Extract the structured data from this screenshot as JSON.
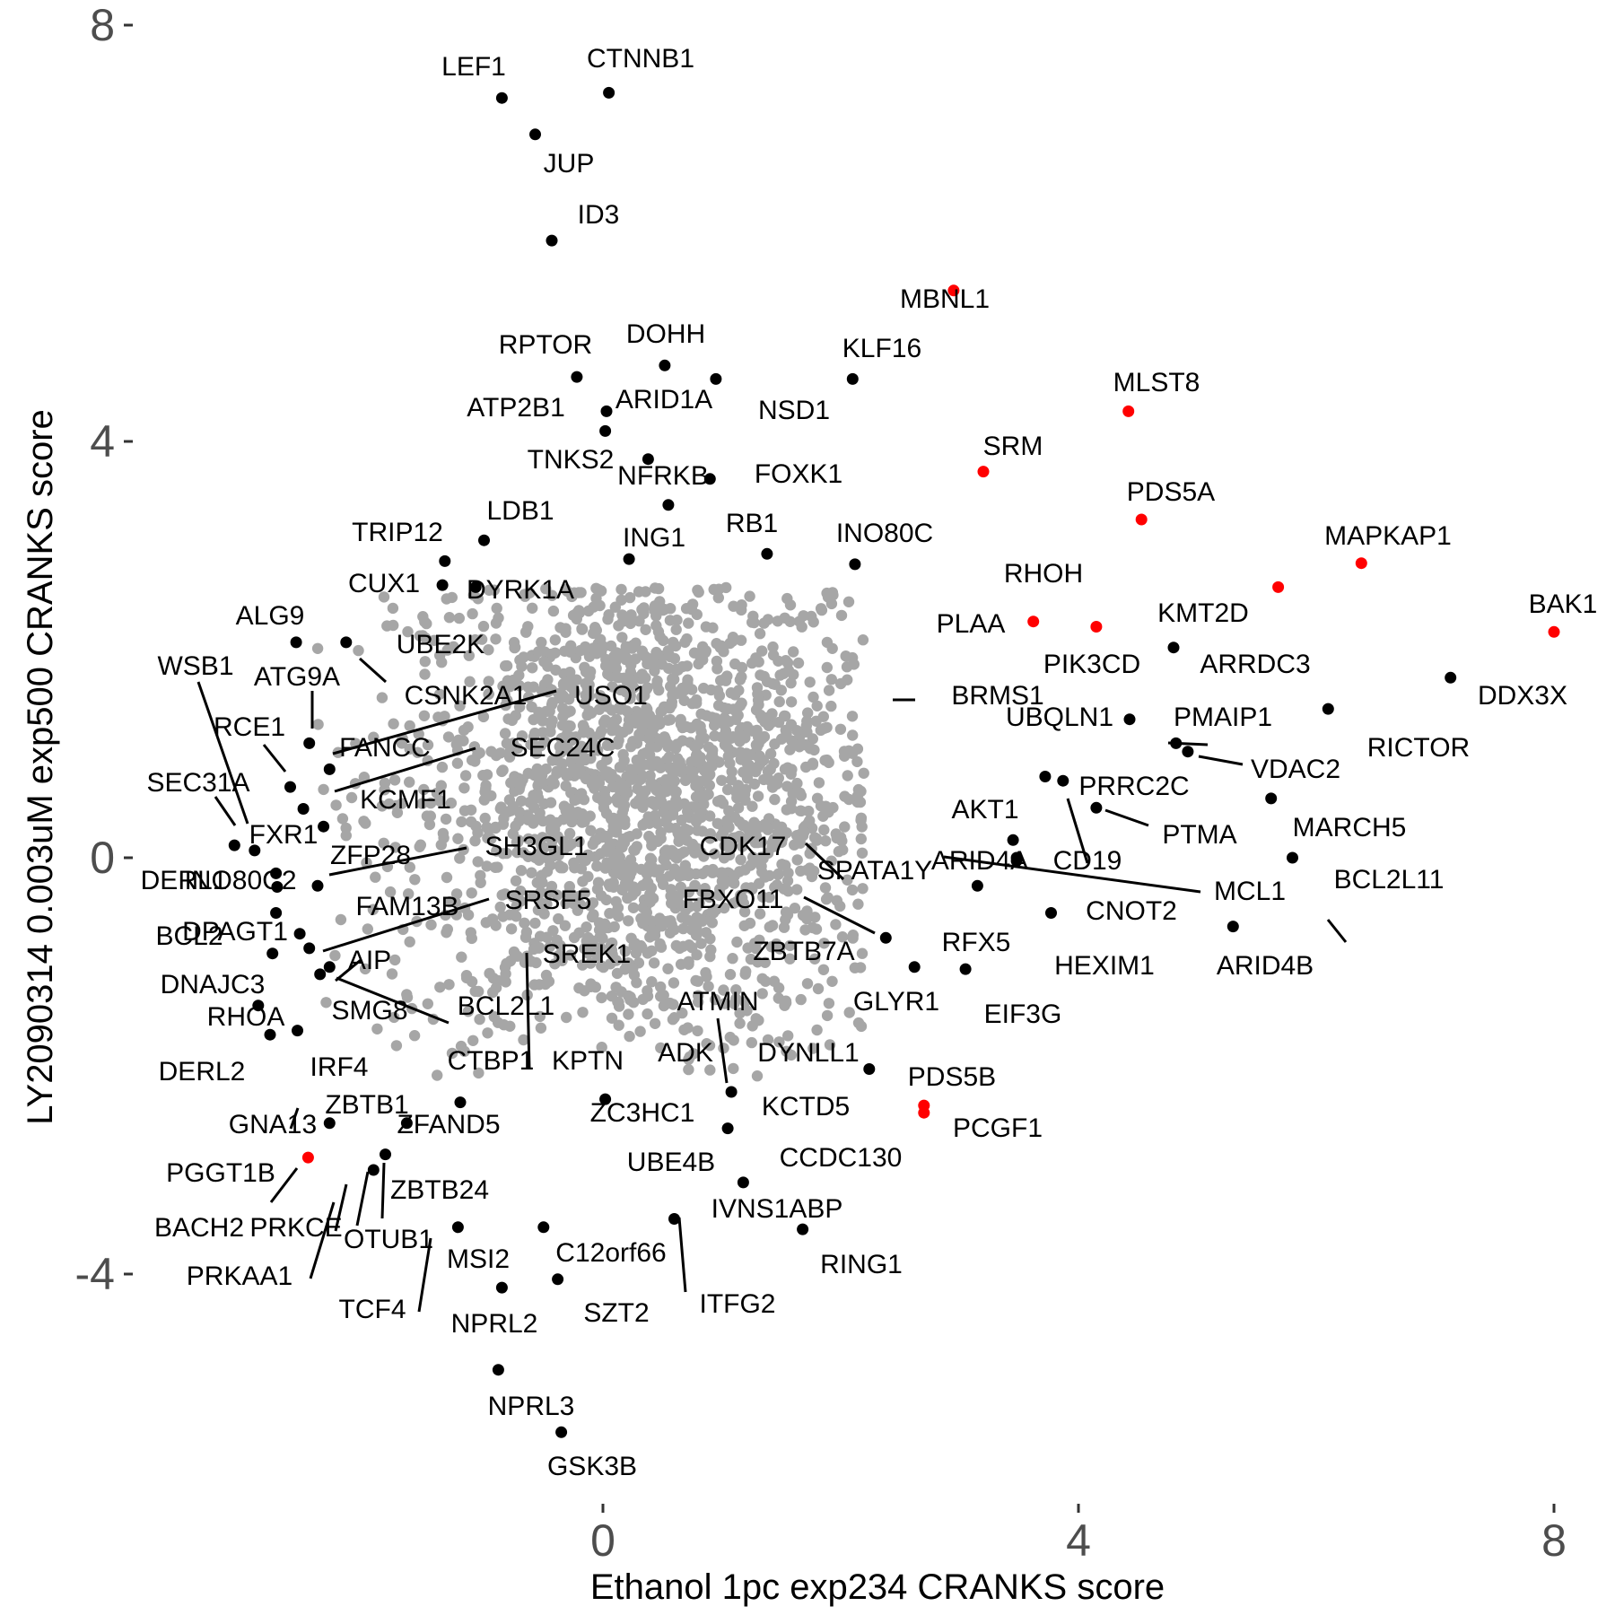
{
  "chart_data": {
    "type": "scatter",
    "title": "",
    "xlabel": "Ethanol 1pc exp234 CRANKS score",
    "ylabel": "LY2090314 0.003uM exp500 CRANKS score",
    "xlim": [
      -3.6,
      8.3
    ],
    "ylim": [
      -6.1,
      8.3
    ],
    "xticks": [
      0,
      4,
      8
    ],
    "yticks": [
      -4,
      0,
      4,
      8
    ],
    "grid": false,
    "legend": "none",
    "colors": {
      "background_points": "#a6a6a6",
      "highlight": "#000000",
      "special": "#ff0000",
      "tick_label": "#4d4d4d"
    },
    "background_cloud": {
      "center": [
        0.35,
        0.6
      ],
      "spread": [
        1.05,
        1.3
      ],
      "color": "#a6a6a6"
    },
    "series": [
      {
        "points": [
          {
            "label": "CTNNB1",
            "x": 0.05,
            "y": 7.35,
            "color": "black"
          },
          {
            "label": "LEF1",
            "x": -0.85,
            "y": 7.3,
            "color": "black"
          },
          {
            "label": "JUP",
            "x": -0.57,
            "y": 6.95,
            "color": "black"
          },
          {
            "label": "ID3",
            "x": -0.43,
            "y": 5.93,
            "color": "black"
          },
          {
            "label": "MBNL1",
            "x": 2.95,
            "y": 5.45,
            "color": "red"
          },
          {
            "label": "DOHH",
            "x": 0.52,
            "y": 4.73,
            "color": "black"
          },
          {
            "label": "RPTOR",
            "x": -0.22,
            "y": 4.62,
            "color": "black"
          },
          {
            "label": "KLF16",
            "x": 2.1,
            "y": 4.6,
            "color": "black"
          },
          {
            "label": "NSD1",
            "x": 0.95,
            "y": 4.6,
            "color": "black"
          },
          {
            "label": "MLST8",
            "x": 4.42,
            "y": 4.29,
            "color": "red"
          },
          {
            "label": "ATP2B1",
            "x": 0.03,
            "y": 4.29,
            "color": "black"
          },
          {
            "label": "ARID1A",
            "x": 0.02,
            "y": 4.1,
            "color": "black"
          },
          {
            "label": "TNKS2",
            "x": 0.38,
            "y": 3.83,
            "color": "black"
          },
          {
            "label": "FOXK1",
            "x": 0.9,
            "y": 3.64,
            "color": "black"
          },
          {
            "label": "SRM",
            "x": 3.2,
            "y": 3.71,
            "color": "red"
          },
          {
            "label": "NFRKB",
            "x": 0.55,
            "y": 3.39,
            "color": "black"
          },
          {
            "label": "PDS5A",
            "x": 4.53,
            "y": 3.25,
            "color": "red"
          },
          {
            "label": "LDB1",
            "x": -1.0,
            "y": 3.05,
            "color": "black"
          },
          {
            "label": "TRIP12",
            "x": -1.33,
            "y": 2.85,
            "color": "black"
          },
          {
            "label": "RB1",
            "x": 1.38,
            "y": 2.92,
            "color": "black"
          },
          {
            "label": "ING1",
            "x": 0.22,
            "y": 2.87,
            "color": "black"
          },
          {
            "label": "INO80C",
            "x": 2.12,
            "y": 2.82,
            "color": "black"
          },
          {
            "label": "DYRK1A",
            "x": -1.07,
            "y": 2.6,
            "color": "black"
          },
          {
            "label": "CUX1",
            "x": -1.35,
            "y": 2.62,
            "color": "black"
          },
          {
            "label": "MAPKAP1",
            "x": 6.38,
            "y": 2.83,
            "color": "red"
          },
          {
            "label": "RHOH",
            "x": 5.68,
            "y": 2.6,
            "color": "red"
          },
          {
            "label": "PLAA",
            "x": 3.62,
            "y": 2.27,
            "color": "red"
          },
          {
            "label": "PIK3CD",
            "x": 4.15,
            "y": 2.22,
            "color": "red"
          },
          {
            "label": "BAK1",
            "x": 8.0,
            "y": 2.17,
            "color": "red"
          },
          {
            "label": "ALG9",
            "x": -2.58,
            "y": 2.07,
            "color": "black"
          },
          {
            "label": "UBE2K",
            "x": -2.16,
            "y": 2.07,
            "color": "black"
          },
          {
            "label": "KMT2D",
            "x": 4.8,
            "y": 2.02,
            "color": "black"
          },
          {
            "label": "DDX3X",
            "x": 7.13,
            "y": 1.73,
            "color": "black"
          },
          {
            "label": "RICTOR",
            "x": 6.1,
            "y": 1.43,
            "color": "black"
          },
          {
            "label": "UBQLN1",
            "x": 4.43,
            "y": 1.33,
            "color": "black"
          },
          {
            "label": "PMAIP1",
            "x": 4.82,
            "y": 1.1,
            "color": "black"
          },
          {
            "label": "VDAC2",
            "x": 4.92,
            "y": 1.02,
            "color": "black"
          },
          {
            "label": "ATG9A",
            "x": -2.47,
            "y": 1.1,
            "color": "black"
          },
          {
            "label": "FANCC",
            "x": -2.3,
            "y": 0.85,
            "color": "black"
          },
          {
            "label": "RCE1",
            "x": -2.63,
            "y": 0.68,
            "color": "black"
          },
          {
            "label": "PRRC2C",
            "x": 3.72,
            "y": 0.78,
            "color": "black"
          },
          {
            "label": "CD19",
            "x": 3.87,
            "y": 0.74,
            "color": "black"
          },
          {
            "label": "MARCH5",
            "x": 5.62,
            "y": 0.57,
            "color": "black"
          },
          {
            "label": "FXR1",
            "x": -2.52,
            "y": 0.47,
            "color": "black"
          },
          {
            "label": "KCMF1",
            "x": -2.35,
            "y": 0.3,
            "color": "black"
          },
          {
            "label": "PTMA",
            "x": 4.15,
            "y": 0.48,
            "color": "black"
          },
          {
            "label": "SEC31A",
            "x": -3.1,
            "y": 0.12,
            "color": "black"
          },
          {
            "label": "WSB1",
            "x": -2.93,
            "y": 0.07,
            "color": "black"
          },
          {
            "label": "AKT1",
            "x": 3.45,
            "y": 0.17,
            "color": "black"
          },
          {
            "label": "BCL2L11",
            "x": 5.8,
            "y": 0.0,
            "color": "black"
          },
          {
            "label": "ARID4A",
            "x": 3.48,
            "y": 0.0,
            "color": "black"
          },
          {
            "label": "MCL1",
            "x": 3.48,
            "y": -0.03,
            "color": "black"
          },
          {
            "label": "DERL1",
            "x": -2.75,
            "y": -0.15,
            "color": "black"
          },
          {
            "label": "INO80C2",
            "x": -2.74,
            "y": -0.28,
            "color": "black"
          },
          {
            "label": "ZFP28",
            "x": -2.4,
            "y": -0.27,
            "color": "black"
          },
          {
            "label": "CNOT2",
            "x": 3.15,
            "y": -0.27,
            "color": "black"
          },
          {
            "label": "HEXIM1",
            "x": 3.77,
            "y": -0.53,
            "color": "black"
          },
          {
            "label": "ARID4B",
            "x": 5.3,
            "y": -0.66,
            "color": "black"
          },
          {
            "label": "RFX5",
            "x": 2.38,
            "y": -0.77,
            "color": "black"
          },
          {
            "label": "BCL2",
            "x": -2.75,
            "y": -0.53,
            "color": "black"
          },
          {
            "label": "DPAGT1",
            "x": -2.55,
            "y": -0.73,
            "color": "black"
          },
          {
            "label": "FAM13B",
            "x": -2.47,
            "y": -0.87,
            "color": "black"
          },
          {
            "label": "DNAJC3",
            "x": -2.78,
            "y": -0.92,
            "color": "black"
          },
          {
            "label": "AIP",
            "x": -2.38,
            "y": -1.12,
            "color": "black"
          },
          {
            "label": "SMG8",
            "x": -2.3,
            "y": -1.05,
            "color": "black"
          },
          {
            "label": "EIF3G",
            "x": 3.05,
            "y": -1.07,
            "color": "black"
          },
          {
            "label": "GLYR1",
            "x": 2.62,
            "y": -1.05,
            "color": "black"
          },
          {
            "label": "RHOA",
            "x": -2.9,
            "y": -1.42,
            "color": "black"
          },
          {
            "label": "DERL2",
            "x": -2.8,
            "y": -1.7,
            "color": "black"
          },
          {
            "label": "IRF4",
            "x": -2.57,
            "y": -1.66,
            "color": "black"
          },
          {
            "label": "CCDC130",
            "x": 2.24,
            "y": -2.03,
            "color": "black"
          },
          {
            "label": "KCTD5",
            "x": 1.08,
            "y": -2.25,
            "color": "black"
          },
          {
            "label": "ZC3HC1",
            "x": 0.02,
            "y": -2.32,
            "color": "black"
          },
          {
            "label": "PCGF1",
            "x": 2.7,
            "y": -2.45,
            "color": "red"
          },
          {
            "label": "PDS5B",
            "x": 2.7,
            "y": -2.38,
            "color": "red"
          },
          {
            "label": "ZFAND5",
            "x": -1.2,
            "y": -2.35,
            "color": "black"
          },
          {
            "label": "ZBTB1",
            "x": -1.65,
            "y": -2.55,
            "color": "black"
          },
          {
            "label": "GNA13",
            "x": -2.3,
            "y": -2.55,
            "color": "black"
          },
          {
            "label": "UBE4B",
            "x": 1.05,
            "y": -2.6,
            "color": "black"
          },
          {
            "label": "ZBTB24",
            "x": -1.83,
            "y": -2.85,
            "color": "black"
          },
          {
            "label": "OTUB1",
            "x": -1.93,
            "y": -3.0,
            "color": "black"
          },
          {
            "label": "PGGT1B",
            "x": -2.48,
            "y": -2.88,
            "color": "red"
          },
          {
            "label": "IVNS1ABP",
            "x": 1.18,
            "y": -3.12,
            "color": "black"
          },
          {
            "label": "ITFG2",
            "x": 0.6,
            "y": -3.47,
            "color": "black"
          },
          {
            "label": "RING1",
            "x": 1.68,
            "y": -3.57,
            "color": "black"
          },
          {
            "label": "MSI2",
            "x": -1.22,
            "y": -3.55,
            "color": "black"
          },
          {
            "label": "C12orf66",
            "x": -0.5,
            "y": -3.55,
            "color": "black"
          },
          {
            "label": "NPRL2",
            "x": -0.85,
            "y": -4.13,
            "color": "black"
          },
          {
            "label": "SZT2",
            "x": -0.38,
            "y": -4.05,
            "color": "black"
          },
          {
            "label": "NPRL3",
            "x": -0.88,
            "y": -4.92,
            "color": "black"
          },
          {
            "label": "GSK3B",
            "x": -0.35,
            "y": -5.52,
            "color": "black"
          }
        ]
      }
    ],
    "text_labels": [
      {
        "text": "8",
        "kind": "ytick"
      },
      {
        "text": "4",
        "kind": "ytick"
      },
      {
        "text": "0",
        "kind": "ytick"
      },
      {
        "text": "-4",
        "kind": "ytick"
      },
      {
        "text": "0",
        "kind": "xtick"
      },
      {
        "text": "4",
        "kind": "xtick"
      },
      {
        "text": "8",
        "kind": "xtick"
      }
    ],
    "annotations": [
      {
        "text": "LEF1"
      },
      {
        "text": "CTNNB1"
      },
      {
        "text": "JUP"
      },
      {
        "text": "ID3"
      },
      {
        "text": "MBNL1"
      },
      {
        "text": "RPTOR"
      },
      {
        "text": "DOHH"
      },
      {
        "text": "KLF16"
      },
      {
        "text": "MLST8"
      },
      {
        "text": "ATP2B1"
      },
      {
        "text": "ARID1A"
      },
      {
        "text": "NSD1"
      },
      {
        "text": "SRM"
      },
      {
        "text": "TNKS2"
      },
      {
        "text": "NFRKB"
      },
      {
        "text": "FOXK1"
      },
      {
        "text": "PDS5A"
      },
      {
        "text": "LDB1"
      },
      {
        "text": "TRIP12"
      },
      {
        "text": "RB1"
      },
      {
        "text": "ING1"
      },
      {
        "text": "INO80C"
      },
      {
        "text": "MAPKAP1"
      },
      {
        "text": "RHOH"
      },
      {
        "text": "CUX1"
      },
      {
        "text": "DYRK1A"
      },
      {
        "text": "KMT2D"
      },
      {
        "text": "BAK1"
      },
      {
        "text": "ALG9"
      },
      {
        "text": "PLAA"
      },
      {
        "text": "UBE2K"
      },
      {
        "text": "WSB1"
      },
      {
        "text": "PIK3CD"
      },
      {
        "text": "ARRDC3"
      },
      {
        "text": "ATG9A"
      },
      {
        "text": "CSNK2A1"
      },
      {
        "text": "USO1"
      },
      {
        "text": "BRMS1"
      },
      {
        "text": "DDX3X"
      },
      {
        "text": "RCE1"
      },
      {
        "text": "UBQLN1"
      },
      {
        "text": "PMAIP1"
      },
      {
        "text": "FANCC"
      },
      {
        "text": "SEC24C"
      },
      {
        "text": "RICTOR"
      },
      {
        "text": "SEC31A"
      },
      {
        "text": "VDAC2"
      },
      {
        "text": "PRRC2C"
      },
      {
        "text": "KCMF1"
      },
      {
        "text": "AKT1"
      },
      {
        "text": "FXR1"
      },
      {
        "text": "PTMA"
      },
      {
        "text": "MARCH5"
      },
      {
        "text": "CDK17"
      },
      {
        "text": "ZFP28"
      },
      {
        "text": "SH3GL1"
      },
      {
        "text": "SPATA1Y"
      },
      {
        "text": "ARID4A"
      },
      {
        "text": "CD19"
      },
      {
        "text": "DERL1"
      },
      {
        "text": "INO80C2"
      },
      {
        "text": "BCL2L11"
      },
      {
        "text": "MCL1"
      },
      {
        "text": "FBXO11"
      },
      {
        "text": "SRSF5"
      },
      {
        "text": "FAM13B"
      },
      {
        "text": "CNOT2"
      },
      {
        "text": "BCL2"
      },
      {
        "text": "DPAGT1"
      },
      {
        "text": "RFX5"
      },
      {
        "text": "HEXIM1"
      },
      {
        "text": "ARID4B"
      },
      {
        "text": "ZBTB7A"
      },
      {
        "text": "SREK1"
      },
      {
        "text": "AIP"
      },
      {
        "text": "DNAJC3"
      },
      {
        "text": "ATMIN"
      },
      {
        "text": "GLYR1"
      },
      {
        "text": "SMG8"
      },
      {
        "text": "BCL2L1"
      },
      {
        "text": "EIF3G"
      },
      {
        "text": "RHOA"
      },
      {
        "text": "ADK"
      },
      {
        "text": "DYNLL1"
      },
      {
        "text": "CTBP1"
      },
      {
        "text": "KPTN"
      },
      {
        "text": "DERL2"
      },
      {
        "text": "IRF4"
      },
      {
        "text": "PDS5B"
      },
      {
        "text": "ZBTB1"
      },
      {
        "text": "ZC3HC1"
      },
      {
        "text": "KCTD5"
      },
      {
        "text": "GNA13"
      },
      {
        "text": "ZFAND5"
      },
      {
        "text": "PCGF1"
      },
      {
        "text": "UBE4B"
      },
      {
        "text": "CCDC130"
      },
      {
        "text": "PGGT1B"
      },
      {
        "text": "ZBTB24"
      },
      {
        "text": "IVNS1ABP"
      },
      {
        "text": "BACH2"
      },
      {
        "text": "PRKCE"
      },
      {
        "text": "OTUB1"
      },
      {
        "text": "RING1"
      },
      {
        "text": "MSI2"
      },
      {
        "text": "C12orf66"
      },
      {
        "text": "PRKAA1"
      },
      {
        "text": "ITFG2"
      },
      {
        "text": "TCF4"
      },
      {
        "text": "SZT2"
      },
      {
        "text": "NPRL2"
      },
      {
        "text": "NPRL3"
      },
      {
        "text": "GSK3B"
      }
    ]
  }
}
